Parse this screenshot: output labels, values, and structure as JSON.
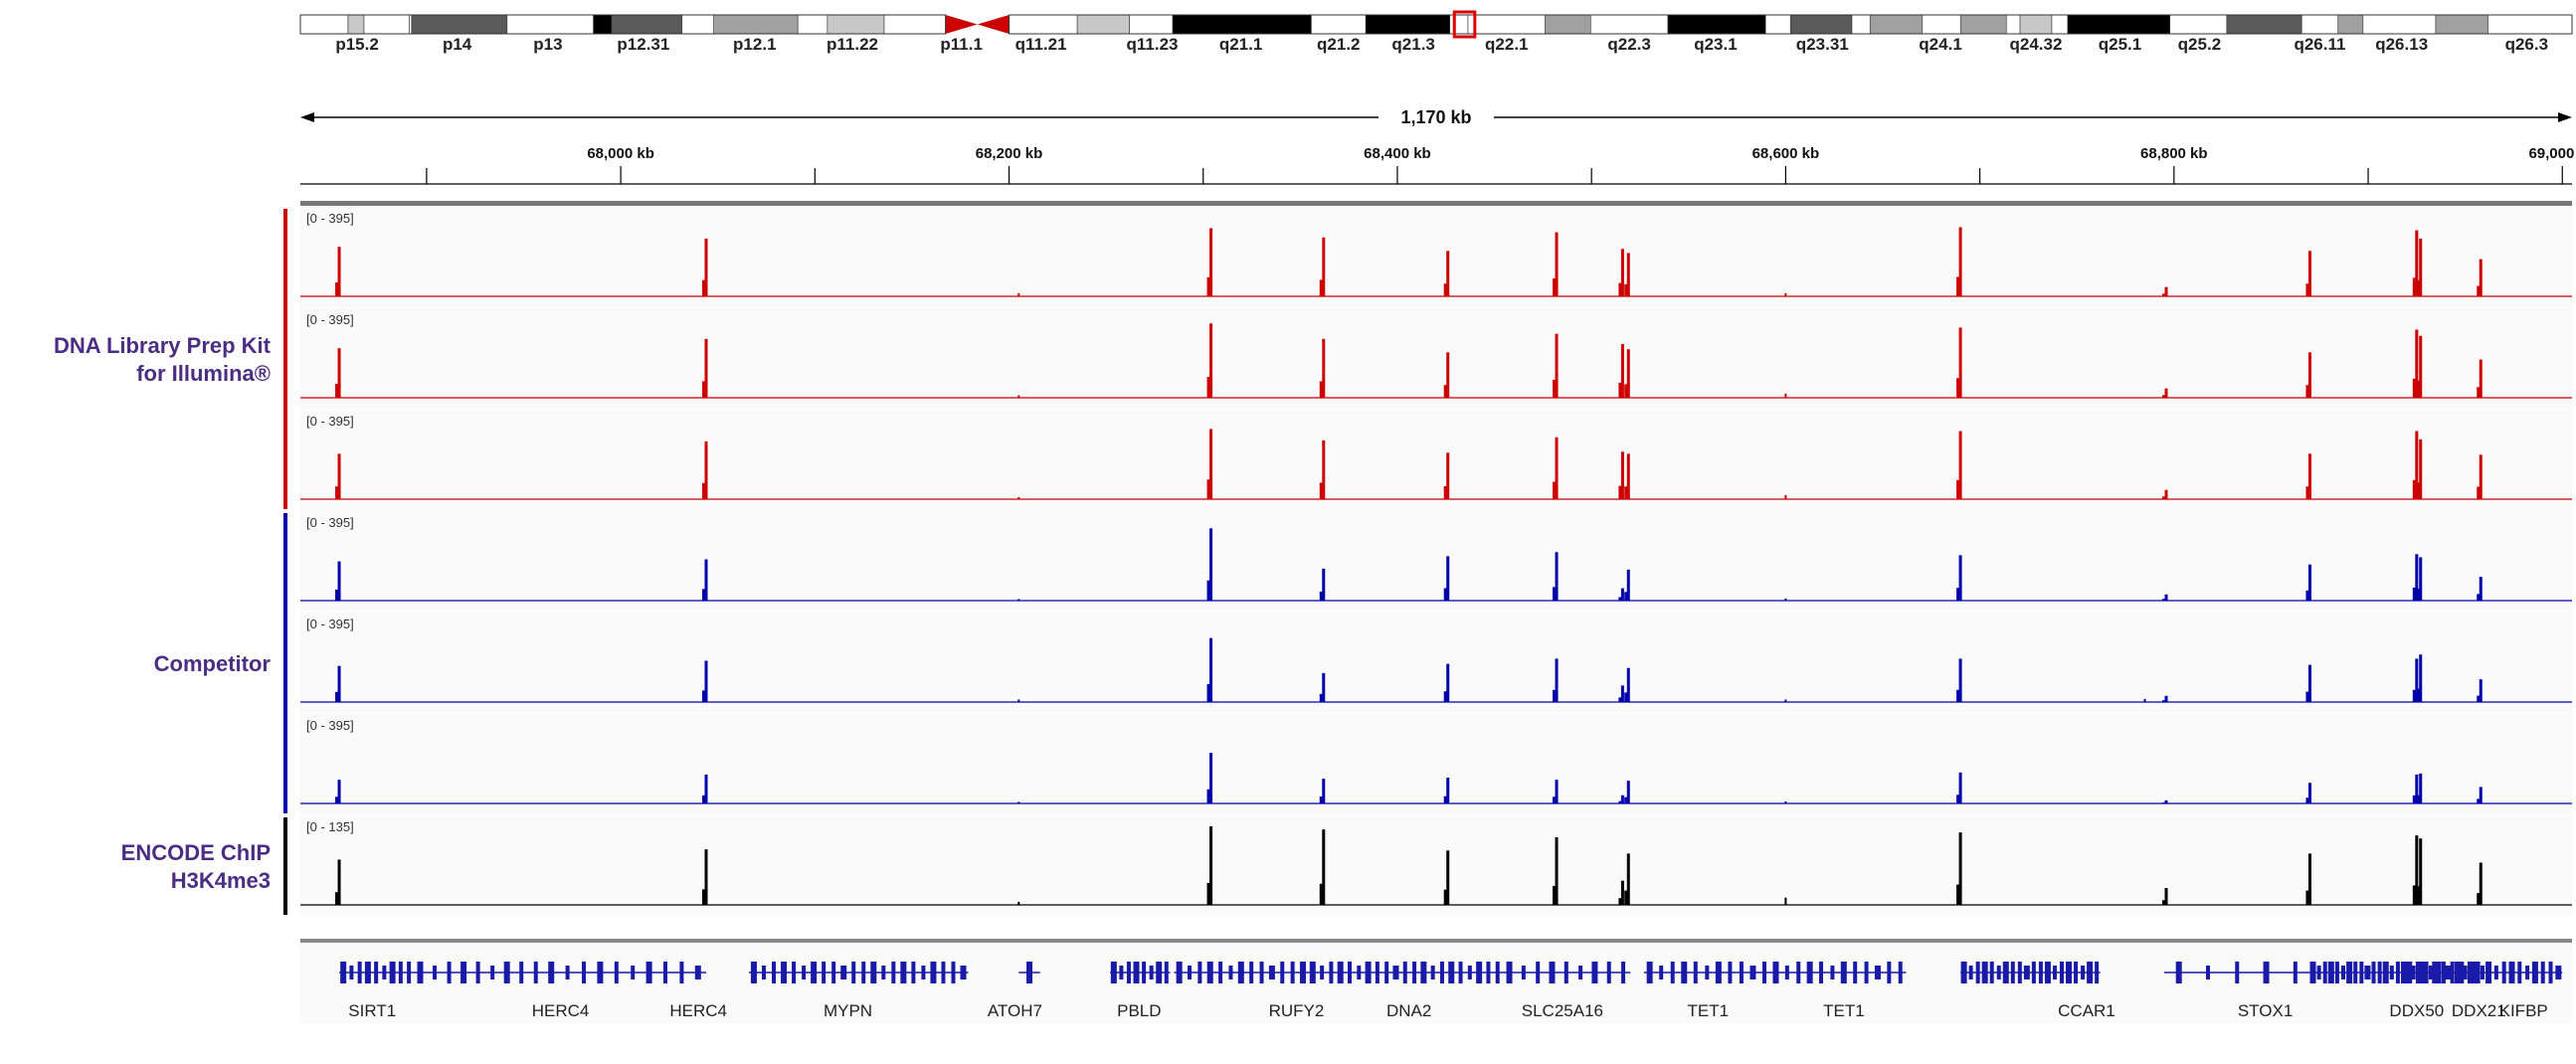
{
  "chart_data": {
    "type": "genome-browser-coverage",
    "region_span_label": "1,170 kb",
    "x_range_kb": [
      67835,
      69005
    ],
    "x_ticks": [
      {
        "value": 68000,
        "label": "68,000 kb"
      },
      {
        "value": 68200,
        "label": "68,200 kb"
      },
      {
        "value": 68400,
        "label": "68,400 kb"
      },
      {
        "value": 68600,
        "label": "68,600 kb"
      },
      {
        "value": 68800,
        "label": "68,800 kb"
      },
      {
        "value": 69000,
        "label": "69,000 kb"
      }
    ],
    "ideogram": {
      "bands": [
        {
          "name": "p15.5",
          "stain": "gneg",
          "f0": 0.0,
          "f1": 0.021
        },
        {
          "name": "p15.4",
          "stain": "gpos25",
          "f0": 0.021,
          "f1": 0.028
        },
        {
          "name": "p15.3",
          "stain": "gneg",
          "f0": 0.028,
          "f1": 0.048
        },
        {
          "name": "p15.2",
          "stain": "gneg",
          "f0": 0.048,
          "f1": 0.049
        },
        {
          "name": "p14",
          "stain": "gpos75",
          "f0": 0.049,
          "f1": 0.091
        },
        {
          "name": "p13",
          "stain": "gneg",
          "f0": 0.091,
          "f1": 0.129
        },
        {
          "name": "p12.3",
          "stain": "gpos100",
          "f0": 0.129,
          "f1": 0.137
        },
        {
          "name": "p12.31",
          "stain": "gpos75",
          "f0": 0.137,
          "f1": 0.168
        },
        {
          "name": "p12.2",
          "stain": "gneg",
          "f0": 0.168,
          "f1": 0.182
        },
        {
          "name": "p12.1",
          "stain": "gpos50",
          "f0": 0.182,
          "f1": 0.219
        },
        {
          "name": "p11.2",
          "stain": "gneg",
          "f0": 0.219,
          "f1": 0.232
        },
        {
          "name": "p11.22",
          "stain": "gpos25",
          "f0": 0.232,
          "f1": 0.257
        },
        {
          "name": "p11.12",
          "stain": "gneg",
          "f0": 0.257,
          "f1": 0.284
        },
        {
          "name": "p11.1",
          "stain": "acen",
          "f0": 0.284,
          "f1": 0.298
        },
        {
          "name": "q11",
          "stain": "acen",
          "f0": 0.298,
          "f1": 0.312
        },
        {
          "name": "q11.21",
          "stain": "gneg",
          "f0": 0.312,
          "f1": 0.342
        },
        {
          "name": "q11.22",
          "stain": "gpos25",
          "f0": 0.342,
          "f1": 0.365
        },
        {
          "name": "q11.23",
          "stain": "gneg",
          "f0": 0.365,
          "f1": 0.384
        },
        {
          "name": "q21.1",
          "stain": "gpos100",
          "f0": 0.384,
          "f1": 0.445
        },
        {
          "name": "q21.2",
          "stain": "gneg",
          "f0": 0.445,
          "f1": 0.469
        },
        {
          "name": "q21.3",
          "stain": "gpos100",
          "f0": 0.469,
          "f1": 0.506
        },
        {
          "name": "q21.3",
          "stain": "gneg",
          "f0": 0.506,
          "f1": 0.514
        },
        {
          "name": "q22.1",
          "stain": "gneg",
          "f0": 0.514,
          "f1": 0.548
        },
        {
          "name": "q22.2",
          "stain": "gpos50",
          "f0": 0.548,
          "f1": 0.568
        },
        {
          "name": "q22.3",
          "stain": "gneg",
          "f0": 0.568,
          "f1": 0.602
        },
        {
          "name": "q23.1",
          "stain": "gpos100",
          "f0": 0.602,
          "f1": 0.645
        },
        {
          "name": "q23.2",
          "stain": "gneg",
          "f0": 0.645,
          "f1": 0.656
        },
        {
          "name": "q23.31",
          "stain": "gpos75",
          "f0": 0.656,
          "f1": 0.683
        },
        {
          "name": "q23.32",
          "stain": "gneg",
          "f0": 0.683,
          "f1": 0.691
        },
        {
          "name": "q23.33",
          "stain": "gpos50",
          "f0": 0.691,
          "f1": 0.714
        },
        {
          "name": "q24.1",
          "stain": "gneg",
          "f0": 0.714,
          "f1": 0.731
        },
        {
          "name": "q24.2",
          "stain": "gpos50",
          "f0": 0.731,
          "f1": 0.751
        },
        {
          "name": "q24.31",
          "stain": "gneg",
          "f0": 0.751,
          "f1": 0.757
        },
        {
          "name": "q24.32",
          "stain": "gpos25",
          "f0": 0.757,
          "f1": 0.771
        },
        {
          "name": "q24.33",
          "stain": "gneg",
          "f0": 0.771,
          "f1": 0.778
        },
        {
          "name": "q25.1",
          "stain": "gpos100",
          "f0": 0.778,
          "f1": 0.823
        },
        {
          "name": "q25.2",
          "stain": "gneg",
          "f0": 0.823,
          "f1": 0.848
        },
        {
          "name": "q25.3",
          "stain": "gpos75",
          "f0": 0.848,
          "f1": 0.881
        },
        {
          "name": "q26.11",
          "stain": "gneg",
          "f0": 0.881,
          "f1": 0.897
        },
        {
          "name": "q26.12",
          "stain": "gpos50",
          "f0": 0.897,
          "f1": 0.908
        },
        {
          "name": "q26.13",
          "stain": "gneg",
          "f0": 0.908,
          "f1": 0.94
        },
        {
          "name": "q26.2",
          "stain": "gpos50",
          "f0": 0.94,
          "f1": 0.963
        },
        {
          "name": "q26.3",
          "stain": "gneg",
          "f0": 0.963,
          "f1": 1.0
        }
      ],
      "labels": [
        {
          "text": "p15.2",
          "f": 0.025
        },
        {
          "text": "p14",
          "f": 0.069
        },
        {
          "text": "p13",
          "f": 0.109
        },
        {
          "text": "p12.31",
          "f": 0.151
        },
        {
          "text": "p12.1",
          "f": 0.2
        },
        {
          "text": "p11.22",
          "f": 0.243
        },
        {
          "text": "p11.1",
          "f": 0.291
        },
        {
          "text": "q11.21",
          "f": 0.326
        },
        {
          "text": "q11.23",
          "f": 0.375
        },
        {
          "text": "q21.1",
          "f": 0.414
        },
        {
          "text": "q21.2",
          "f": 0.457
        },
        {
          "text": "q21.3",
          "f": 0.49
        },
        {
          "text": "q22.1",
          "f": 0.531
        },
        {
          "text": "q22.3",
          "f": 0.585
        },
        {
          "text": "q23.1",
          "f": 0.623
        },
        {
          "text": "q23.31",
          "f": 0.67
        },
        {
          "text": "q24.1",
          "f": 0.722
        },
        {
          "text": "q24.32",
          "f": 0.764
        },
        {
          "text": "q25.1",
          "f": 0.801
        },
        {
          "text": "q25.2",
          "f": 0.836
        },
        {
          "text": "q26.11",
          "f": 0.889
        },
        {
          "text": "q26.13",
          "f": 0.925
        },
        {
          "text": "q26.3",
          "f": 0.98
        }
      ],
      "highlight": [
        0.508,
        0.517
      ]
    },
    "groups": [
      {
        "name_lines": [
          "DNA Library Prep Kit",
          "for Illumina®"
        ],
        "color": "#cc0000",
        "tracks": [
          0,
          1,
          2
        ]
      },
      {
        "name_lines": [
          "Competitor"
        ],
        "color": "#0000aa",
        "tracks": [
          3,
          4,
          5
        ]
      },
      {
        "name_lines": [
          "ENCODE ChIP",
          "H3K4me3"
        ],
        "color": "#000000",
        "tracks": [
          6
        ]
      }
    ],
    "peak_positions_kb": [
      67855,
      68044,
      68304,
      68362,
      68426,
      68482,
      68516,
      68519,
      68690,
      68796,
      68870,
      68925,
      68927,
      68958
    ],
    "tracks": [
      {
        "range": "[0 - 395]",
        "ymax": 395,
        "color": "#cc0000",
        "peaks": [
          240,
          280,
          330,
          285,
          220,
          310,
          230,
          210,
          335,
          45,
          220,
          320,
          280,
          180
        ],
        "minor": [
          {
            "x": 68205,
            "v": 15
          },
          {
            "x": 68600,
            "v": 15
          }
        ]
      },
      {
        "range": "[0 - 395]",
        "ymax": 395,
        "color": "#cc0000",
        "peaks": [
          240,
          285,
          360,
          285,
          220,
          310,
          260,
          235,
          340,
          45,
          220,
          330,
          300,
          185
        ],
        "minor": [
          {
            "x": 68205,
            "v": 12
          },
          {
            "x": 68600,
            "v": 20
          }
        ]
      },
      {
        "range": "[0 - 395]",
        "ymax": 395,
        "color": "#cc0000",
        "peaks": [
          220,
          280,
          340,
          285,
          225,
          300,
          230,
          220,
          330,
          45,
          220,
          330,
          290,
          215
        ],
        "minor": [
          {
            "x": 68205,
            "v": 10
          },
          {
            "x": 68600,
            "v": 20
          }
        ]
      },
      {
        "range": "[0 - 395]",
        "ymax": 395,
        "color": "#0000aa",
        "peaks": [
          190,
          200,
          350,
          155,
          215,
          235,
          60,
          150,
          220,
          30,
          175,
          225,
          210,
          115
        ],
        "minor": [
          {
            "x": 68205,
            "v": 8
          },
          {
            "x": 68600,
            "v": 10
          }
        ]
      },
      {
        "range": "[0 - 395]",
        "ymax": 395,
        "color": "#0000aa",
        "peaks": [
          175,
          200,
          310,
          140,
          185,
          210,
          80,
          165,
          210,
          30,
          180,
          210,
          230,
          110
        ],
        "minor": [
          {
            "x": 68205,
            "v": 12
          },
          {
            "x": 68600,
            "v": 12
          },
          {
            "x": 68785,
            "v": 15
          }
        ]
      },
      {
        "range": "[0 - 395]",
        "ymax": 395,
        "color": "#0000aa",
        "peaks": [
          115,
          140,
          245,
          120,
          125,
          115,
          40,
          110,
          150,
          15,
          100,
          140,
          145,
          80
        ],
        "minor": [
          {
            "x": 68205,
            "v": 8
          },
          {
            "x": 68600,
            "v": 10
          }
        ]
      },
      {
        "range": "[0 - 135]",
        "ymax": 135,
        "color": "#000000",
        "peaks": [
          75,
          92,
          130,
          125,
          90,
          112,
          40,
          85,
          120,
          28,
          85,
          115,
          110,
          70
        ],
        "minor": [
          {
            "x": 68205,
            "v": 5
          },
          {
            "x": 68600,
            "v": 12
          }
        ]
      }
    ],
    "genes": [
      {
        "label": "SIRT1",
        "label_kb": 67872,
        "start": 67855,
        "end": 67893,
        "exons": 9
      },
      {
        "label": "HERC4",
        "label_kb": 67969,
        "start": 67893,
        "end": 67960,
        "exons": 9
      },
      {
        "label": "HERC4",
        "label_kb": 68040,
        "start": 67960,
        "end": 68044,
        "exons": 10
      },
      {
        "label": "MYPN",
        "label_kb": 68117,
        "start": 68066,
        "end": 68179,
        "exons": 22
      },
      {
        "label": "ATOH7",
        "label_kb": 68203,
        "start": 68205,
        "end": 68216,
        "exons": 1
      },
      {
        "label": "PBLD",
        "label_kb": 68267,
        "start": 68252,
        "end": 68283,
        "exons": 8
      },
      {
        "label": "RUFY2",
        "label_kb": 68348,
        "start": 68285,
        "end": 68354,
        "exons": 13
      },
      {
        "label": "DNA2",
        "label_kb": 68406,
        "start": 68354,
        "end": 68454,
        "exons": 21
      },
      {
        "label": "SLC25A16",
        "label_kb": 68485,
        "start": 68454,
        "end": 68520,
        "exons": 9
      },
      {
        "label": "TET1",
        "label_kb": 68560,
        "start": 68527,
        "end": 68592,
        "exons": 11
      },
      {
        "label": "TET1",
        "label_kb": 68630,
        "start": 68592,
        "end": 68662,
        "exons": 12
      },
      {
        "label": "CCAR1",
        "label_kb": 68755,
        "start": 68690,
        "end": 68762,
        "exons": 20
      },
      {
        "label": "STOX1",
        "label_kb": 68847,
        "start": 68795,
        "end": 68870,
        "exons": 5
      },
      {
        "label": "DDX50",
        "label_kb": 68925,
        "start": 68870,
        "end": 68920,
        "exons": 16
      },
      {
        "label": "DDX21",
        "label_kb": 68957,
        "start": 68920,
        "end": 68960,
        "exons": 18
      },
      {
        "label": "KIFBP",
        "label_kb": 68980,
        "start": 68960,
        "end": 69000,
        "exons": 10
      }
    ]
  }
}
